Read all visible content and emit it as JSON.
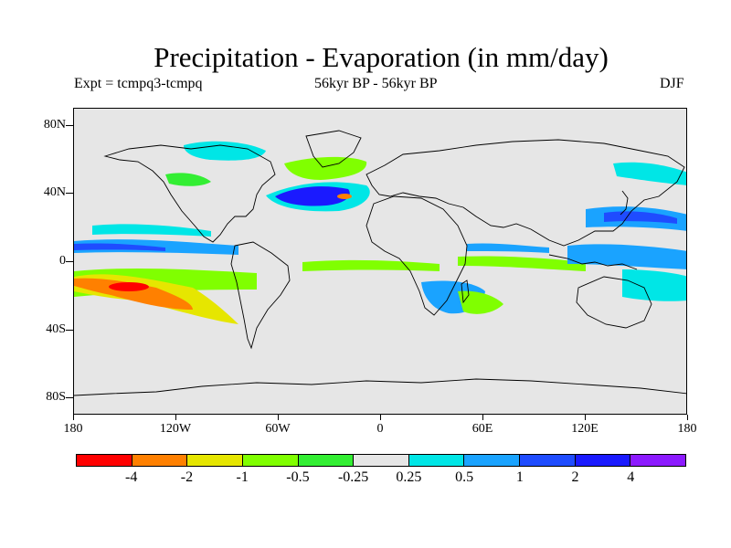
{
  "title": "Precipitation - Evaporation (in mm/day)",
  "experiment": "Expt = tcmpq3-tcmpq",
  "period": "56kyr BP - 56kyr BP",
  "season": "DJF",
  "map": {
    "background_color": "#e6e6e6",
    "coastline_color": "#000000",
    "lat_labels": [
      "80N",
      "40N",
      "0",
      "40S",
      "80S"
    ],
    "lat_values": [
      80,
      40,
      0,
      -40,
      -80
    ],
    "lon_labels": [
      "180",
      "120W",
      "60W",
      "0",
      "60E",
      "120E",
      "180"
    ],
    "lon_values": [
      -180,
      -120,
      -60,
      0,
      60,
      120,
      180
    ]
  },
  "colorbar": {
    "colors": [
      "#ff0000",
      "#ff8000",
      "#e6e600",
      "#80ff00",
      "#33ee33",
      "#e6e6e6",
      "#00e6e6",
      "#1aa3ff",
      "#1f4cff",
      "#1a1aff",
      "#8c1aff"
    ],
    "labels": [
      "-4",
      "-2",
      "-1",
      "-0.5",
      "-0.25",
      "0.25",
      "0.5",
      "1",
      "2",
      "4"
    ]
  }
}
